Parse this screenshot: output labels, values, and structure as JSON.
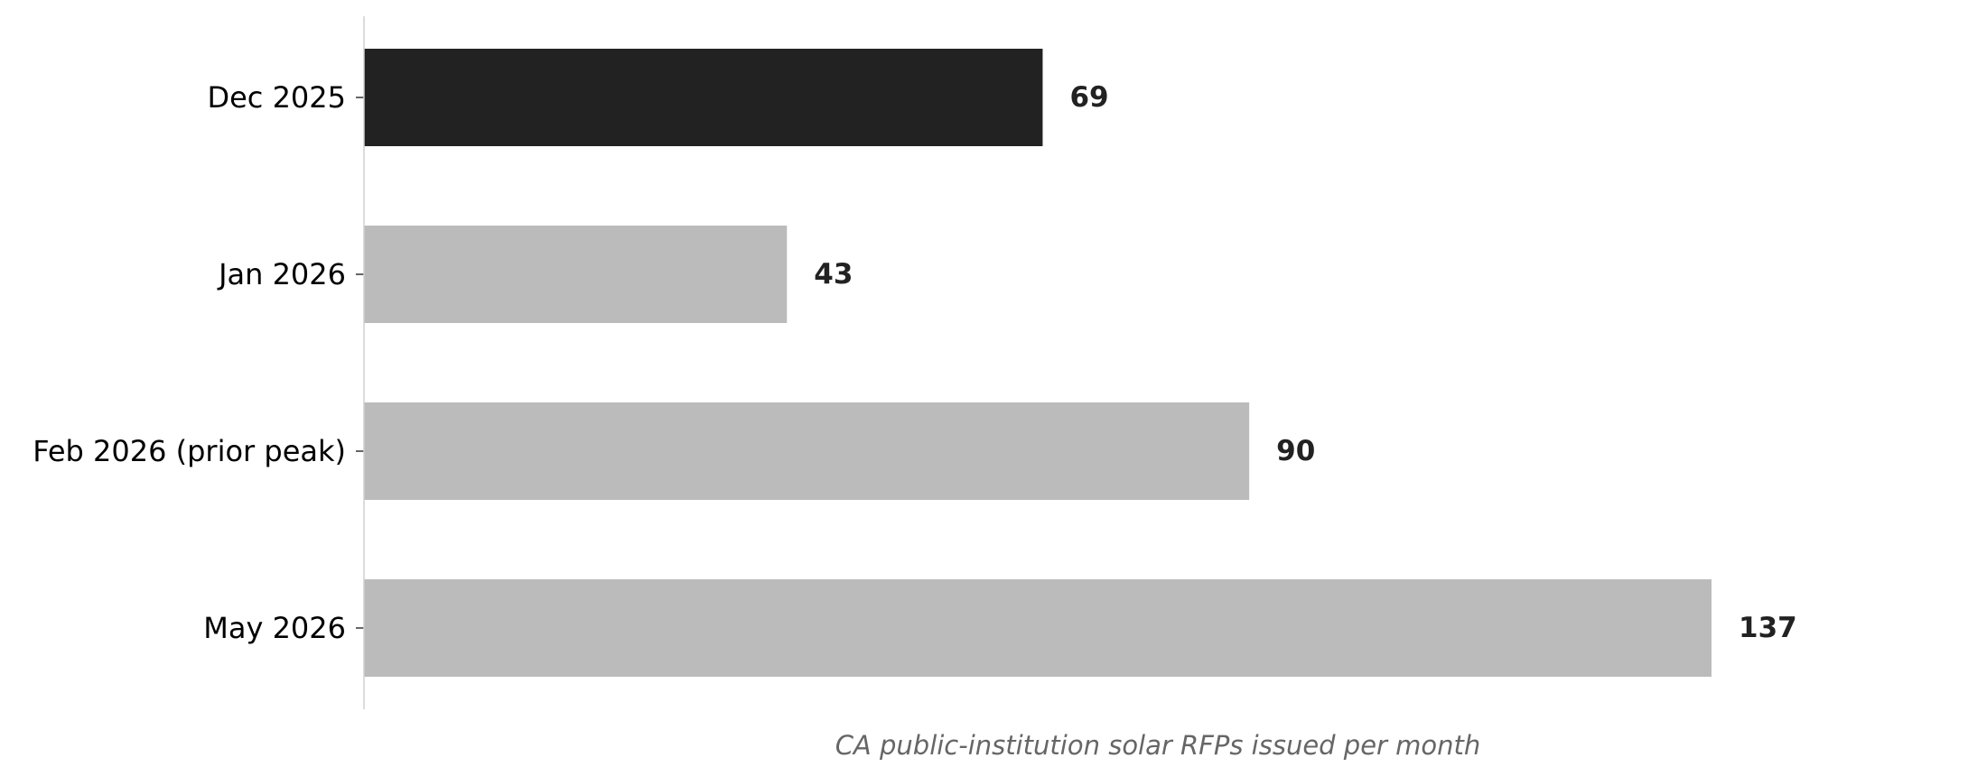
{
  "chart_data": {
    "type": "bar",
    "orientation": "horizontal",
    "categories": [
      "Dec 2025",
      "Jan 2026",
      "Feb 2026 (prior peak)",
      "May 2026"
    ],
    "values": [
      69,
      43,
      90,
      137
    ],
    "xlabel": "CA public-institution solar RFPs issued per month",
    "ylabel": "",
    "xlim": [
      0,
      150
    ],
    "grid": false,
    "colors": {
      "highlight": "#222222",
      "default": "#bbbbbb",
      "axis": "#d0d0d0"
    },
    "highlight_index": 0
  }
}
